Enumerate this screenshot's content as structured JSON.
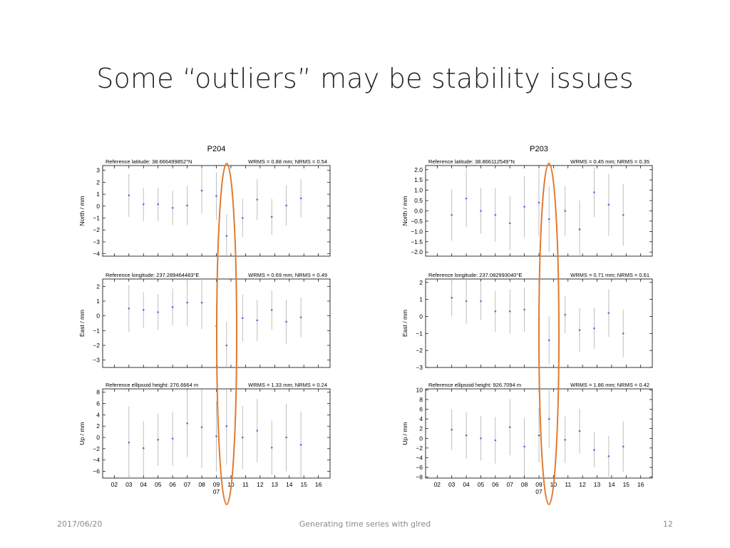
{
  "slide": {
    "title": "Some “outliers” may be stability issues",
    "footer_date": "2017/06/20",
    "footer_center": "Generating time series with glred",
    "page_number": "12"
  },
  "colors": {
    "marker": "#5c6fd6",
    "errorbar": "#b8b8b8",
    "highlight": "#e07a2f",
    "axis": "#000000"
  },
  "chart_data": [
    {
      "type": "scatter",
      "station": "P204",
      "xticks": [
        "02",
        "03",
        "04",
        "05",
        "06",
        "07",
        "08",
        "09",
        "10",
        "11",
        "12",
        "13",
        "14",
        "15",
        "16"
      ],
      "xsub": "07",
      "highlight_x": "09.5",
      "panels": [
        {
          "header_left": "Reference latitude: 38.666499852°N",
          "header_right": "WRMS = 0.88 mm; NRMS = 0.54",
          "ylabel": "North / mm",
          "ylim": [
            -4.2,
            3.4
          ],
          "yticks": [
            {
              "v": 3,
              "t": "3"
            },
            {
              "v": 2,
              "t": "2"
            },
            {
              "v": 1,
              "t": "1"
            },
            {
              "v": 0,
              "t": "0"
            },
            {
              "v": -1,
              "t": "−1"
            },
            {
              "v": -2,
              "t": "−2"
            },
            {
              "v": -3,
              "t": "−3"
            },
            {
              "v": -4,
              "t": "−4"
            }
          ],
          "points": [
            [
              3,
              0.9,
              1.8
            ],
            [
              4,
              0.15,
              1.4
            ],
            [
              5,
              0.15,
              1.4
            ],
            [
              6,
              -0.15,
              1.45
            ],
            [
              7,
              0.05,
              1.65
            ],
            [
              8,
              1.3,
              1.9
            ],
            [
              9,
              0.85,
              2.0
            ],
            [
              9.7,
              -2.5,
              1.8
            ],
            [
              10.8,
              -1.0,
              1.6
            ],
            [
              11.8,
              0.55,
              1.7
            ],
            [
              12.8,
              -0.9,
              1.5
            ],
            [
              13.8,
              0.05,
              1.7
            ],
            [
              14.8,
              0.65,
              1.6
            ]
          ]
        },
        {
          "header_left": "Reference longitude: 237.289464483°E",
          "header_right": "WRMS = 0.69 mm; NRMS = 0.49",
          "ylabel": "East / mm",
          "ylim": [
            -3.5,
            2.5
          ],
          "yticks": [
            {
              "v": 2,
              "t": "2"
            },
            {
              "v": 1,
              "t": "1"
            },
            {
              "v": 0,
              "t": "0"
            },
            {
              "v": -1,
              "t": "−1"
            },
            {
              "v": -2,
              "t": "−2"
            },
            {
              "v": -3,
              "t": "−3"
            }
          ],
          "points": [
            [
              3,
              0.5,
              1.6
            ],
            [
              4,
              0.4,
              1.2
            ],
            [
              5,
              0.25,
              1.2
            ],
            [
              6,
              0.6,
              1.25
            ],
            [
              7,
              0.9,
              1.6
            ],
            [
              8,
              0.9,
              1.8
            ],
            [
              9,
              -0.7,
              1.6
            ],
            [
              9.7,
              -2.0,
              1.6
            ],
            [
              10.8,
              -0.15,
              1.6
            ],
            [
              11.8,
              -0.3,
              1.4
            ],
            [
              12.8,
              0.4,
              1.35
            ],
            [
              13.8,
              -0.4,
              1.5
            ],
            [
              14.8,
              -0.1,
              1.35
            ]
          ]
        },
        {
          "header_left": "Reference ellipsoid height: 276.6664 m",
          "header_right": "WRMS = 1.33 mm; NRMS = 0.24",
          "ylabel": "Up / mm",
          "ylim": [
            -7.2,
            8.6
          ],
          "yticks": [
            {
              "v": 8,
              "t": "8"
            },
            {
              "v": 6,
              "t": "6"
            },
            {
              "v": 4,
              "t": "4"
            },
            {
              "v": 2,
              "t": "2"
            },
            {
              "v": 0,
              "t": "0"
            },
            {
              "v": -2,
              "t": "−2"
            },
            {
              "v": -4,
              "t": "−4"
            },
            {
              "v": -6,
              "t": "−6"
            }
          ],
          "points": [
            [
              3,
              -0.9,
              6.4
            ],
            [
              4,
              -1.9,
              4.8
            ],
            [
              5,
              -0.4,
              4.6
            ],
            [
              6,
              -0.2,
              4.8
            ],
            [
              7,
              2.5,
              6.0
            ],
            [
              8,
              1.8,
              7.2
            ],
            [
              9,
              0.2,
              6.2
            ],
            [
              9.7,
              2.0,
              6.8
            ],
            [
              10.8,
              0.0,
              5.6
            ],
            [
              11.8,
              1.2,
              5.6
            ],
            [
              12.8,
              -1.8,
              4.8
            ],
            [
              13.8,
              0.0,
              6.0
            ],
            [
              14.8,
              -1.3,
              5.9
            ]
          ]
        }
      ]
    },
    {
      "type": "scatter",
      "station": "P203",
      "xticks": [
        "02",
        "03",
        "04",
        "05",
        "06",
        "07",
        "08",
        "09",
        "10",
        "11",
        "12",
        "13",
        "14",
        "15",
        "16"
      ],
      "xsub": "07",
      "highlight_x": "09.5",
      "panels": [
        {
          "header_left": "Reference latitude: 38.866112549°N",
          "header_right": "WRMS = 0.45 mm; NRMS = 0.35",
          "ylabel": "North / mm",
          "ylim": [
            -2.2,
            2.2
          ],
          "yticks": [
            {
              "v": 2,
              "t": "2.0"
            },
            {
              "v": 1.5,
              "t": "1.5"
            },
            {
              "v": 1,
              "t": "1.0"
            },
            {
              "v": 0.5,
              "t": "0.5"
            },
            {
              "v": 0,
              "t": "0.0"
            },
            {
              "v": -0.5,
              "t": "−0.5"
            },
            {
              "v": -1,
              "t": "−1.0"
            },
            {
              "v": -1.5,
              "t": "−1.5"
            },
            {
              "v": -2,
              "t": "−2.0"
            }
          ],
          "points": [
            [
              3,
              -0.2,
              1.25
            ],
            [
              4,
              0.6,
              1.4
            ],
            [
              5,
              -0.0,
              1.1
            ],
            [
              6,
              -0.2,
              1.3
            ],
            [
              7,
              -0.6,
              1.3
            ],
            [
              8,
              0.2,
              1.5
            ],
            [
              9,
              0.4,
              1.6
            ],
            [
              9.7,
              -0.4,
              1.6
            ],
            [
              10.8,
              -0.0,
              1.2
            ],
            [
              11.8,
              -0.9,
              1.4
            ],
            [
              12.8,
              0.9,
              1.2
            ],
            [
              13.8,
              0.3,
              1.5
            ],
            [
              14.8,
              -0.2,
              1.5
            ]
          ]
        },
        {
          "header_left": "Reference longitude: 237.082993040°E",
          "header_right": "WRMS = 0.71 mm; NRMS = 0.61",
          "ylabel": "East / mm",
          "ylim": [
            -3.0,
            2.2
          ],
          "yticks": [
            {
              "v": 2,
              "t": "2"
            },
            {
              "v": 1,
              "t": "1"
            },
            {
              "v": 0,
              "t": "0"
            },
            {
              "v": -1,
              "t": "−1"
            },
            {
              "v": -2,
              "t": "−2"
            },
            {
              "v": -3,
              "t": "−3"
            }
          ],
          "points": [
            [
              3,
              1.1,
              1.1
            ],
            [
              4,
              0.9,
              1.35
            ],
            [
              5,
              0.9,
              1.1
            ],
            [
              6,
              0.3,
              1.2
            ],
            [
              7,
              0.3,
              1.3
            ],
            [
              8,
              0.4,
              1.3
            ],
            [
              9,
              -0.2,
              1.35
            ],
            [
              9.7,
              -1.4,
              1.4
            ],
            [
              10.8,
              0.1,
              1.1
            ],
            [
              11.8,
              -0.8,
              1.3
            ],
            [
              12.8,
              -0.7,
              1.2
            ],
            [
              13.8,
              0.2,
              1.4
            ],
            [
              14.8,
              -1.0,
              1.4
            ]
          ]
        },
        {
          "header_left": "Reference ellipsoid height: 926.7094 m",
          "header_right": "WRMS = 1.86 mm; NRMS = 0.42",
          "ylabel": "Up / mm",
          "ylim": [
            -8.2,
            10.2
          ],
          "yticks": [
            {
              "v": 10,
              "t": "10"
            },
            {
              "v": 8,
              "t": "8"
            },
            {
              "v": 6,
              "t": "6"
            },
            {
              "v": 4,
              "t": "4"
            },
            {
              "v": 2,
              "t": "2"
            },
            {
              "v": 0,
              "t": "0"
            },
            {
              "v": -2,
              "t": "−2"
            },
            {
              "v": -4,
              "t": "−4"
            },
            {
              "v": -6,
              "t": "−6"
            },
            {
              "v": -8,
              "t": "−8"
            }
          ],
          "points": [
            [
              3,
              1.8,
              4.2
            ],
            [
              4,
              0.6,
              4.8
            ],
            [
              5,
              0.0,
              4.6
            ],
            [
              6,
              -0.4,
              4.8
            ],
            [
              7,
              2.3,
              5.8
            ],
            [
              8,
              -1.7,
              5.9
            ],
            [
              9,
              0.6,
              5.6
            ],
            [
              9.7,
              4.0,
              6.0
            ],
            [
              10.8,
              -0.3,
              4.8
            ],
            [
              11.8,
              1.5,
              4.6
            ],
            [
              12.8,
              -2.4,
              3.6
            ],
            [
              13.8,
              -3.7,
              4.2
            ],
            [
              14.8,
              -1.7,
              5.2
            ]
          ]
        }
      ]
    }
  ]
}
